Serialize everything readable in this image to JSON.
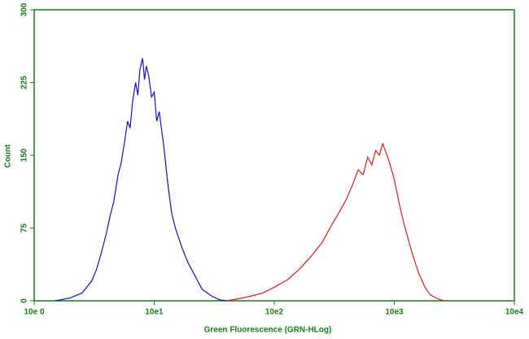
{
  "chart_data": {
    "type": "line",
    "x_label": "Green Fluorescence (GRN-HLog)",
    "y_label": "Count",
    "xscale": "log",
    "xlim": [
      1,
      10000
    ],
    "xticks": [
      {
        "value": 1,
        "label": "10e 0"
      },
      {
        "value": 10,
        "label": "10e1"
      },
      {
        "value": 100,
        "label": "10e2"
      },
      {
        "value": 1000,
        "label": "10e3"
      },
      {
        "value": 10000,
        "label": "10e4"
      }
    ],
    "ylim": [
      0,
      300
    ],
    "yticks": [
      0,
      75,
      150,
      225,
      300
    ],
    "axis_color": "#1a7a1a",
    "series": [
      {
        "color": "#1414b4",
        "x": [
          1.5,
          2,
          2.5,
          3,
          3.3,
          3.6,
          4,
          4.3,
          4.6,
          5,
          5.3,
          5.6,
          6,
          6.3,
          6.6,
          7,
          7.3,
          7.6,
          8,
          8.3,
          8.6,
          9,
          9.5,
          10,
          10.5,
          11,
          12,
          13,
          14,
          15,
          17,
          19,
          22,
          25,
          30,
          35,
          40
        ],
        "values": [
          0,
          3,
          8,
          20,
          32,
          48,
          70,
          88,
          102,
          130,
          142,
          160,
          185,
          178,
          205,
          225,
          212,
          238,
          250,
          228,
          242,
          232,
          210,
          215,
          185,
          195,
          160,
          120,
          90,
          75,
          55,
          40,
          25,
          12,
          5,
          1,
          0
        ]
      },
      {
        "color": "#d42020",
        "x": [
          40,
          50,
          60,
          80,
          100,
          130,
          160,
          200,
          250,
          300,
          350,
          400,
          450,
          500,
          550,
          600,
          650,
          700,
          750,
          800,
          900,
          1000,
          1100,
          1200,
          1400,
          1600,
          1800,
          2000,
          2300,
          2600
        ],
        "values": [
          0,
          2,
          4,
          8,
          14,
          22,
          32,
          45,
          60,
          78,
          92,
          105,
          120,
          135,
          130,
          148,
          140,
          155,
          150,
          162,
          145,
          125,
          100,
          80,
          50,
          28,
          14,
          6,
          2,
          0
        ]
      }
    ]
  }
}
